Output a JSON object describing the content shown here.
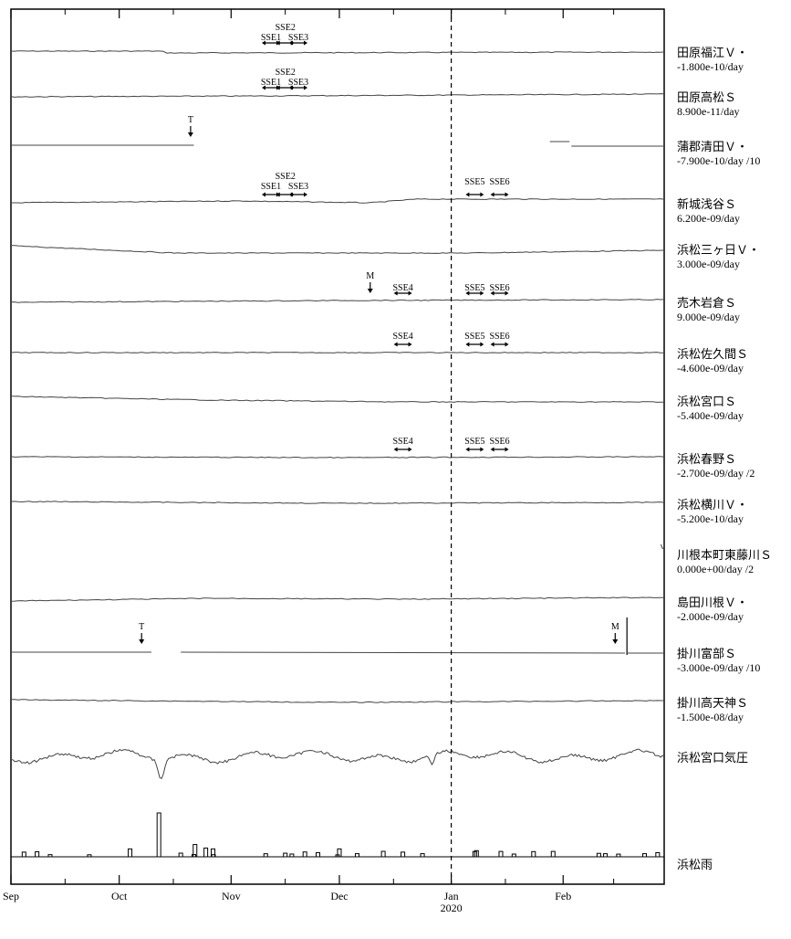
{
  "chart_data": {
    "type": "line",
    "title": "",
    "xlabel": "",
    "ylabel": "",
    "x_range": [
      "2019-09-01",
      "2020-02-29"
    ],
    "grid": false,
    "colors": {
      "trace": "#444444",
      "frame": "#000000",
      "bar": "#000000"
    },
    "month_ticks": [
      {
        "date": "2019-09-01",
        "label": "Sep",
        "sublabel": ""
      },
      {
        "date": "2019-10-01",
        "label": "Oct",
        "sublabel": ""
      },
      {
        "date": "2019-11-01",
        "label": "Nov",
        "sublabel": ""
      },
      {
        "date": "2019-12-01",
        "label": "Dec",
        "sublabel": ""
      },
      {
        "date": "2020-01-01",
        "label": "Jan",
        "sublabel": "2020"
      },
      {
        "date": "2020-02-01",
        "label": "Feb",
        "sublabel": ""
      }
    ],
    "year_boundary": "2020-01-01",
    "series": [
      {
        "name": "田原福江Ｖ・",
        "rate": "-1.800e-10/day"
      },
      {
        "name": "田原高松Ｓ",
        "rate": "8.900e-11/day"
      },
      {
        "name": "蒲郡清田Ｖ・",
        "rate": "-7.900e-10/day /10"
      },
      {
        "name": "新城浅谷Ｓ",
        "rate": "6.200e-09/day"
      },
      {
        "name": "浜松三ヶ日Ｖ・",
        "rate": "3.000e-09/day"
      },
      {
        "name": "売木岩倉Ｓ",
        "rate": "9.000e-09/day"
      },
      {
        "name": "浜松佐久間Ｓ",
        "rate": "-4.600e-09/day"
      },
      {
        "name": "浜松宮口Ｓ",
        "rate": "-5.400e-09/day"
      },
      {
        "name": "浜松春野Ｓ",
        "rate": "-2.700e-09/day /2"
      },
      {
        "name": "浜松横川Ｖ・",
        "rate": "-5.200e-10/day"
      },
      {
        "name": "川根本町東藤川Ｓ",
        "rate": "0.000e+00/day /2"
      },
      {
        "name": "島田川根Ｖ・",
        "rate": "-2.000e-09/day"
      },
      {
        "name": "掛川富部Ｓ",
        "rate": "-3.000e-09/day /10"
      },
      {
        "name": "掛川高天神Ｓ",
        "rate": "-1.500e-08/day"
      },
      {
        "name": "浜松宮口気圧",
        "rate": ""
      },
      {
        "name": "浜松雨",
        "rate": ""
      }
    ],
    "annotations": [
      {
        "text": "SSE1",
        "series": 0
      },
      {
        "text": "SSE2",
        "series": 0
      },
      {
        "text": "SSE3",
        "series": 0
      },
      {
        "text": "SSE1",
        "series": 1
      },
      {
        "text": "SSE2",
        "series": 1
      },
      {
        "text": "SSE3",
        "series": 1
      },
      {
        "text": "T",
        "series": 2
      },
      {
        "text": "SSE1",
        "series": 3
      },
      {
        "text": "SSE2",
        "series": 3
      },
      {
        "text": "SSE3",
        "series": 3
      },
      {
        "text": "SSE5",
        "series": 3
      },
      {
        "text": "SSE6",
        "series": 3
      },
      {
        "text": "M",
        "series": 5
      },
      {
        "text": "SSE4",
        "series": 5
      },
      {
        "text": "SSE5",
        "series": 5
      },
      {
        "text": "SSE6",
        "series": 5
      },
      {
        "text": "SSE4",
        "series": 6
      },
      {
        "text": "SSE5",
        "series": 6
      },
      {
        "text": "SSE6",
        "series": 6
      },
      {
        "text": "SSE4",
        "series": 8
      },
      {
        "text": "SSE5",
        "series": 8
      },
      {
        "text": "SSE6",
        "series": 8
      },
      {
        "text": "T",
        "series": 12
      },
      {
        "text": "M",
        "series": 12
      }
    ],
    "rain_events": [
      {
        "date": "2019-10-12",
        "relative_height": 1.0
      },
      {
        "date": "2019-10-04",
        "relative_height": 0.18
      },
      {
        "date": "2019-10-22",
        "relative_height": 0.28
      },
      {
        "date": "2019-10-25",
        "relative_height": 0.2
      },
      {
        "date": "2019-10-27",
        "relative_height": 0.18
      },
      {
        "date": "2019-12-01",
        "relative_height": 0.18
      },
      {
        "date": "2020-01-08",
        "relative_height": 0.14
      }
    ]
  }
}
